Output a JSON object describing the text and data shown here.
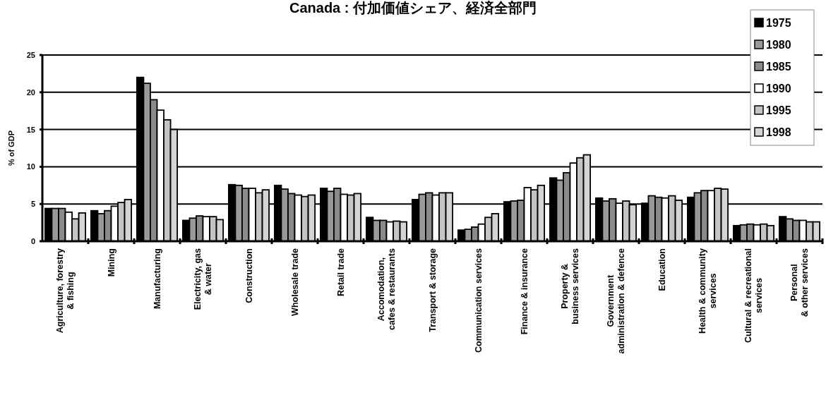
{
  "chart_data": {
    "type": "bar",
    "title": "Canada : 付加価値シェア、経済全部門",
    "ylabel": "% of GDP",
    "categories": [
      "Agriculture, forestry\n& fishing",
      "Mining",
      "Manufacturing",
      "Electricity, gas\n& water",
      "Construction",
      "Wholesale trade",
      "Retail trade",
      "Accomodation,\ncafes & restaurants",
      "Transport & storage",
      "Communication services",
      "Finance & insurance",
      "Property &\nbusiness services",
      "Government\nadministration & defence",
      "Education",
      "Health & community\nservices",
      "Cultural & recreational\nservices",
      "Personal\n& other services"
    ],
    "series": [
      {
        "name": "1975",
        "color": "#000000",
        "values": [
          4.4,
          4.1,
          22.0,
          2.8,
          7.6,
          7.5,
          7.1,
          3.2,
          5.6,
          1.5,
          5.3,
          8.5,
          5.8,
          5.1,
          5.9,
          2.1,
          3.3
        ]
      },
      {
        "name": "1980",
        "color": "#999999",
        "values": [
          4.4,
          3.7,
          21.2,
          3.1,
          7.5,
          7.0,
          6.7,
          2.8,
          6.3,
          1.6,
          5.4,
          8.2,
          5.4,
          6.1,
          6.5,
          2.2,
          3.0
        ]
      },
      {
        "name": "1985",
        "color": "#8a8a8a",
        "values": [
          4.4,
          4.1,
          19.0,
          3.4,
          7.1,
          6.4,
          7.1,
          2.8,
          6.5,
          1.9,
          5.5,
          9.2,
          5.7,
          5.9,
          6.8,
          2.3,
          2.8
        ]
      },
      {
        "name": "1990",
        "color": "#ffffff",
        "values": [
          3.9,
          4.7,
          17.6,
          3.3,
          7.1,
          6.2,
          6.3,
          2.6,
          6.2,
          2.3,
          7.2,
          10.5,
          5.1,
          5.8,
          6.8,
          2.2,
          2.8
        ]
      },
      {
        "name": "1995",
        "color": "#c4c4c4",
        "values": [
          3.0,
          5.2,
          16.3,
          3.3,
          6.5,
          6.0,
          6.2,
          2.7,
          6.5,
          3.2,
          6.9,
          11.2,
          5.4,
          6.1,
          7.1,
          2.3,
          2.6
        ]
      },
      {
        "name": "1998",
        "color": "#d4d4d4",
        "values": [
          3.8,
          5.6,
          15.0,
          2.9,
          6.9,
          6.2,
          6.4,
          2.6,
          6.5,
          3.7,
          7.5,
          11.6,
          4.9,
          5.5,
          7.0,
          2.1,
          2.6
        ]
      }
    ],
    "ylim": [
      0,
      25
    ],
    "yticks": [
      0,
      5,
      10,
      15,
      20,
      25
    ],
    "grid": "y",
    "legend": "top right"
  }
}
